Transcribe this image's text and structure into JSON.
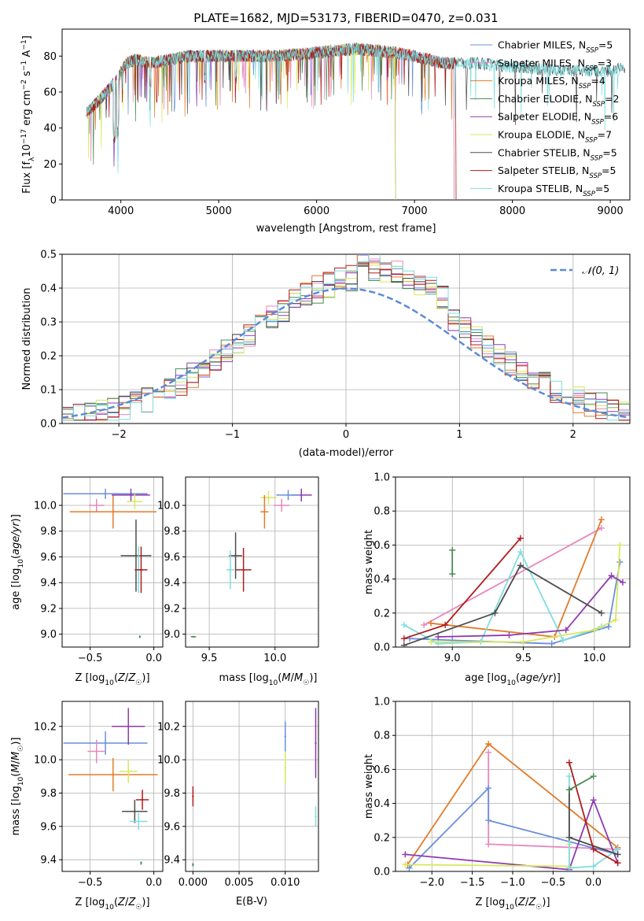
{
  "chart_data": [
    {
      "id": "spectrum",
      "type": "line",
      "title": "PLATE=1682, MJD=53173, FIBERID=0470, z=0.031",
      "xlabel": "wavelength [Angstrom, rest frame]",
      "ylabel": "Flux [f_λ10^{-17} erg cm^{-2} s^{-1} A^{-1}]",
      "xlim": [
        3400,
        9200
      ],
      "ylim": [
        0,
        95
      ],
      "xticks": [
        4000,
        5000,
        6000,
        7000,
        8000,
        9000
      ],
      "yticks": [
        0,
        20,
        40,
        60,
        80
      ],
      "grid": false,
      "legend_position": "top-right",
      "continuum": {
        "x": [
          3650,
          3750,
          3850,
          3950,
          4050,
          4150,
          4300,
          4500,
          4700,
          5000,
          5300,
          5600,
          6000,
          6400,
          6800,
          7000,
          7300,
          7600,
          8000,
          8500,
          9000,
          9150
        ],
        "y": [
          48,
          54,
          60,
          66,
          76,
          78,
          76,
          78,
          80,
          80,
          80,
          80,
          82,
          84,
          82,
          80,
          76,
          76,
          74,
          72,
          72,
          73
        ]
      },
      "series": [
        {
          "name": "Chabrier MILES, N_SSP=5",
          "color": "#6a8fdc",
          "x_end": 7400
        },
        {
          "name": "Salpeter MILES, N_SSP=3",
          "color": "#e688be",
          "x_end": 7400
        },
        {
          "name": "Kroupa MILES, N_SSP=4",
          "color": "#e27c2a",
          "x_end": 7420
        },
        {
          "name": "Chabrier ELODIE, N_SSP=2",
          "color": "#4a8a55",
          "x_end": 6800
        },
        {
          "name": "Salpeter ELODIE, N_SSP=6",
          "color": "#8f3ab0",
          "x_end": 6800
        },
        {
          "name": "Kroupa ELODIE, N_SSP=7",
          "color": "#d8e85a",
          "x_end": 6800
        },
        {
          "name": "Chabrier STELIB, N_SSP=5",
          "color": "#4d4d4d",
          "x_end": 9150
        },
        {
          "name": "Salpeter STELIB, N_SSP=5",
          "color": "#b01c1c",
          "x_end": 7420
        },
        {
          "name": "Kroupa STELIB, N_SSP=5",
          "color": "#7fdde0",
          "x_end": 9150
        }
      ]
    },
    {
      "id": "residuals",
      "type": "histogram",
      "xlabel": "(data-model)/error",
      "ylabel": "Normed distribution",
      "xlim": [
        -2.5,
        2.5
      ],
      "ylim": [
        0,
        0.5
      ],
      "xticks": [
        -2,
        -1,
        0,
        1,
        2
      ],
      "yticks": [
        0.0,
        0.1,
        0.2,
        0.3,
        0.4,
        0.5
      ],
      "grid": true,
      "legend_position": "top-right",
      "legend": "𝒩(0, 1)",
      "reference_curve": {
        "type": "gaussian",
        "mean": 0,
        "sigma": 1,
        "color": "#5b8bd9",
        "style": "dashed"
      }
    },
    {
      "id": "age-vs-metallicity",
      "type": "scatter",
      "xlabel": "Z [log₁₀(Z/Z☉)]",
      "ylabel": "age  [log₁₀(age/yr)]",
      "xlim": [
        -0.72,
        0.07
      ],
      "ylim": [
        8.9,
        10.22
      ],
      "xticks": [
        -0.5,
        0.0
      ],
      "yticks": [
        9.0,
        9.2,
        9.4,
        9.6,
        9.8,
        10.0
      ],
      "grid": true,
      "points": [
        {
          "color": "#6a8fdc",
          "x": -0.38,
          "y": 10.09,
          "xerr": 0.33,
          "yerr": 0.04
        },
        {
          "color": "#e688be",
          "x": -0.45,
          "y": 10.0,
          "xerr": 0.06,
          "yerr": 0.05
        },
        {
          "color": "#e27c2a",
          "x": -0.32,
          "y": 9.95,
          "xerr": 0.34,
          "yerr": 0.13
        },
        {
          "color": "#8f3ab0",
          "x": -0.18,
          "y": 10.08,
          "xerr": 0.15,
          "yerr": 0.05
        },
        {
          "color": "#d8e85a",
          "x": -0.15,
          "y": 10.03,
          "xerr": 0.06,
          "yerr": 0.06
        },
        {
          "color": "#4d4d4d",
          "x": -0.14,
          "y": 9.61,
          "xerr": 0.12,
          "yerr": 0.28
        },
        {
          "color": "#7fdde0",
          "x": -0.12,
          "y": 9.5,
          "xerr": 0.03,
          "yerr": 0.18
        },
        {
          "color": "#b01c1c",
          "x": -0.1,
          "y": 9.5,
          "xerr": 0.05,
          "yerr": 0.18
        },
        {
          "color": "#4a8a55",
          "x": -0.11,
          "y": 8.98,
          "xerr": 0.0,
          "yerr": 0.01
        }
      ]
    },
    {
      "id": "age-vs-mass",
      "type": "scatter",
      "xlabel": "mass [log₁₀(M/M☉)]",
      "ylabel": "",
      "xlim": [
        9.32,
        10.33
      ],
      "ylim": [
        8.9,
        10.22
      ],
      "xticks": [
        9.5,
        10.0
      ],
      "yticks": [
        9.0,
        9.2,
        9.4,
        9.6,
        9.8,
        10.0
      ],
      "grid": true,
      "points": [
        {
          "color": "#8f3ab0",
          "x": 10.2,
          "y": 10.08,
          "xerr": 0.08,
          "yerr": 0.05
        },
        {
          "color": "#6a8fdc",
          "x": 10.1,
          "y": 10.08,
          "xerr": 0.09,
          "yerr": 0.04
        },
        {
          "color": "#e688be",
          "x": 10.05,
          "y": 10.0,
          "xerr": 0.06,
          "yerr": 0.05
        },
        {
          "color": "#d8e85a",
          "x": 9.95,
          "y": 10.06,
          "xerr": 0.06,
          "yerr": 0.05
        },
        {
          "color": "#e27c2a",
          "x": 9.92,
          "y": 9.95,
          "xerr": 0.03,
          "yerr": 0.13
        },
        {
          "color": "#4d4d4d",
          "x": 9.7,
          "y": 9.61,
          "xerr": 0.05,
          "yerr": 0.18
        },
        {
          "color": "#7fdde0",
          "x": 9.66,
          "y": 9.5,
          "xerr": 0.03,
          "yerr": 0.15
        },
        {
          "color": "#b01c1c",
          "x": 9.76,
          "y": 9.5,
          "xerr": 0.06,
          "yerr": 0.17
        },
        {
          "color": "#4a8a55",
          "x": 9.38,
          "y": 8.98,
          "xerr": 0.02,
          "yerr": 0.0
        }
      ]
    },
    {
      "id": "weight-vs-age",
      "type": "line",
      "xlabel": "age  [log₁₀(age/yr)]",
      "ylabel": "mass weight",
      "xlim": [
        8.6,
        10.25
      ],
      "ylim": [
        0,
        1.0
      ],
      "xticks": [
        9.0,
        9.5,
        10.0
      ],
      "yticks": [
        0.0,
        0.2,
        0.4,
        0.6,
        0.8,
        1.0
      ],
      "grid": true,
      "series": [
        {
          "color": "#e688be",
          "x": [
            8.8,
            10.05
          ],
          "y": [
            0.13,
            0.7
          ]
        },
        {
          "color": "#e27c2a",
          "x": [
            8.85,
            9.72,
            10.05
          ],
          "y": [
            0.14,
            0.06,
            0.75
          ]
        },
        {
          "color": "#6a8fdc",
          "x": [
            8.7,
            9.0,
            9.7,
            10.1,
            10.18
          ],
          "y": [
            0.05,
            0.04,
            0.02,
            0.12,
            0.5
          ]
        },
        {
          "color": "#7fdde0",
          "x": [
            8.66,
            8.9,
            9.2,
            9.48,
            9.78,
            10.05
          ],
          "y": [
            0.13,
            0.02,
            0.03,
            0.56,
            0.04,
            0.12
          ]
        },
        {
          "color": "#d8e85a",
          "x": [
            8.85,
            9.5,
            10.0,
            10.15,
            10.18
          ],
          "y": [
            0.03,
            0.03,
            0.1,
            0.16,
            0.6
          ]
        },
        {
          "color": "#8f3ab0",
          "x": [
            8.9,
            9.4,
            9.8,
            10.12,
            10.2
          ],
          "y": [
            0.06,
            0.07,
            0.1,
            0.42,
            0.38
          ]
        },
        {
          "color": "#4d4d4d",
          "x": [
            8.66,
            9.3,
            9.48,
            10.05
          ],
          "y": [
            0.01,
            0.2,
            0.48,
            0.2
          ]
        },
        {
          "color": "#b01c1c",
          "x": [
            8.66,
            8.95,
            9.48
          ],
          "y": [
            0.05,
            0.13,
            0.64
          ]
        },
        {
          "color": "#4a8a55",
          "x": [
            9.0,
            9.0
          ],
          "y": [
            0.43,
            0.57
          ]
        }
      ]
    },
    {
      "id": "mass-vs-metallicity",
      "type": "scatter",
      "xlabel": "Z [log₁₀(Z/Z☉)]",
      "ylabel": "mass [log₁₀(M/M☉)]",
      "xlim": [
        -0.72,
        0.07
      ],
      "ylim": [
        9.33,
        10.35
      ],
      "xticks": [
        -0.5,
        0.0
      ],
      "yticks": [
        9.4,
        9.6,
        9.8,
        10.0,
        10.2
      ],
      "grid": true,
      "points": [
        {
          "color": "#6a8fdc",
          "x": -0.38,
          "y": 10.1,
          "xerr": 0.33,
          "yerr": 0.07
        },
        {
          "color": "#8f3ab0",
          "x": -0.2,
          "y": 10.2,
          "xerr": 0.13,
          "yerr": 0.11
        },
        {
          "color": "#e688be",
          "x": -0.45,
          "y": 10.05,
          "xerr": 0.07,
          "yerr": 0.07
        },
        {
          "color": "#e27c2a",
          "x": -0.32,
          "y": 9.91,
          "xerr": 0.35,
          "yerr": 0.1
        },
        {
          "color": "#d8e85a",
          "x": -0.2,
          "y": 9.93,
          "xerr": 0.07,
          "yerr": 0.07
        },
        {
          "color": "#b01c1c",
          "x": -0.09,
          "y": 9.76,
          "xerr": 0.05,
          "yerr": 0.06
        },
        {
          "color": "#4d4d4d",
          "x": -0.15,
          "y": 9.69,
          "xerr": 0.1,
          "yerr": 0.07
        },
        {
          "color": "#7fdde0",
          "x": -0.12,
          "y": 9.63,
          "xerr": 0.07,
          "yerr": 0.05
        },
        {
          "color": "#4a8a55",
          "x": -0.1,
          "y": 9.38,
          "xerr": 0.0,
          "yerr": 0.01
        }
      ]
    },
    {
      "id": "mass-vs-ebv",
      "type": "scatter",
      "xlabel": "E(B-V)",
      "ylabel": "",
      "xlim": [
        -0.0008,
        0.0136
      ],
      "ylim": [
        9.33,
        10.35
      ],
      "xticks": [
        0.0,
        0.005,
        0.01
      ],
      "xtick_labels": [
        "0.000",
        "0.005",
        "0.010"
      ],
      "yticks": [
        9.4,
        9.6,
        9.8,
        10.0,
        10.2
      ],
      "grid": true,
      "points": [
        {
          "color": "#6a8fdc",
          "x": 0.01,
          "y": 10.14,
          "xerr": 0.0,
          "yerr": 0.09
        },
        {
          "color": "#d8e85a",
          "x": 0.01,
          "y": 9.95,
          "xerr": 0.0,
          "yerr": 0.1
        },
        {
          "color": "#8f3ab0",
          "x": 0.0133,
          "y": 10.1,
          "xerr": 0.0,
          "yerr": 0.21
        },
        {
          "color": "#7fdde0",
          "x": 0.0133,
          "y": 9.66,
          "xerr": 0.0,
          "yerr": 0.06
        },
        {
          "color": "#b01c1c",
          "x": 0.0,
          "y": 9.78,
          "xerr": 0.0,
          "yerr": 0.06
        },
        {
          "color": "#4a8a55",
          "x": 0.0,
          "y": 9.37,
          "xerr": 0.0,
          "yerr": 0.01
        }
      ]
    },
    {
      "id": "weight-vs-metallicity",
      "type": "line",
      "xlabel": "Z [log₁₀(Z/Z☉)]",
      "ylabel": "mass weight",
      "xlim": [
        -2.45,
        0.45
      ],
      "ylim": [
        0,
        1.0
      ],
      "xticks": [
        -2.0,
        -1.5,
        -1.0,
        -0.5,
        0.0
      ],
      "yticks": [
        0.0,
        0.2,
        0.4,
        0.6,
        0.8,
        1.0
      ],
      "grid": true,
      "series": [
        {
          "color": "#e27c2a",
          "x": [
            -2.3,
            -1.3,
            0.3
          ],
          "y": [
            0.04,
            0.75,
            0.14
          ]
        },
        {
          "color": "#e688be",
          "x": [
            -1.3,
            -1.3,
            0.3
          ],
          "y": [
            0.7,
            0.16,
            0.13
          ]
        },
        {
          "color": "#6a8fdc",
          "x": [
            -2.28,
            -1.3,
            -1.3,
            0.3
          ],
          "y": [
            0.02,
            0.49,
            0.3,
            0.1
          ]
        },
        {
          "color": "#8f3ab0",
          "x": [
            -2.33,
            -0.3,
            0.0,
            0.3
          ],
          "y": [
            0.1,
            0.01,
            0.42,
            0.05
          ]
        },
        {
          "color": "#d8e85a",
          "x": [
            -2.33,
            -0.3,
            -0.3
          ],
          "y": [
            0.04,
            0.03,
            0.16
          ]
        },
        {
          "color": "#7fdde0",
          "x": [
            -0.3,
            -0.3,
            0.0,
            0.3
          ],
          "y": [
            0.56,
            0.02,
            0.03,
            0.13
          ]
        },
        {
          "color": "#4d4d4d",
          "x": [
            -0.3,
            -0.3,
            0.3
          ],
          "y": [
            0.48,
            0.2,
            0.1
          ]
        },
        {
          "color": "#b01c1c",
          "x": [
            -0.3,
            0.0,
            0.3
          ],
          "y": [
            0.64,
            0.13,
            0.05
          ]
        },
        {
          "color": "#4a8a55",
          "x": [
            -0.3,
            0.0
          ],
          "y": [
            0.48,
            0.56
          ]
        }
      ]
    }
  ]
}
